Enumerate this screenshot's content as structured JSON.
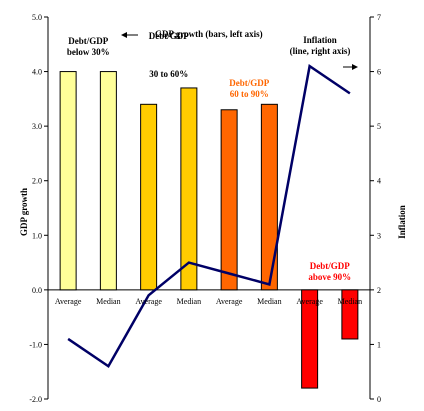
{
  "chart_data": {
    "type": "bar",
    "title": "",
    "bar_axis_note": "GDP growth (bars, left axis)",
    "line_axis_note": "Inflation (line, right axis)",
    "ylabel": "GDP growth",
    "y2label": "Inflation",
    "ylim": [
      -2.0,
      5.0
    ],
    "y2lim": [
      0,
      7
    ],
    "yticks": [
      "5.0",
      "4.0",
      "3.0",
      "2.0",
      "1.0",
      "0.0",
      "-1.0",
      "-2.0"
    ],
    "y2ticks": [
      "7",
      "6",
      "5",
      "4",
      "3",
      "2",
      "1",
      "0"
    ],
    "categories": [
      "Average",
      "Median",
      "Average",
      "Median",
      "Average",
      "Median",
      "Average",
      "Median"
    ],
    "groups": [
      {
        "label": "Debt/GDP below 30%",
        "label_lines": [
          "Debt/GDP",
          "below 30%"
        ],
        "color": "#ffff99",
        "label_color": "#000000"
      },
      {
        "label": "Debt/GDP 30 to 60%",
        "label_lines": [
          "Debt/GDP",
          "30 to 60%"
        ],
        "color": "#ffcc00",
        "label_color": "#000000"
      },
      {
        "label": "Debt/GDP 60 to 90%",
        "label_lines": [
          "Debt/GDP",
          "60 to 90%"
        ],
        "color": "#ff6600",
        "label_color": "#ff6600"
      },
      {
        "label": "Debt/GDP above 90%",
        "label_lines": [
          "Debt/GDP",
          "above 90%"
        ],
        "color": "#ff0000",
        "label_color": "#ff0000"
      }
    ],
    "series": [
      {
        "name": "GDP growth",
        "axis": "left",
        "kind": "bar",
        "values": [
          4.0,
          4.0,
          3.4,
          3.7,
          3.3,
          3.4,
          -1.8,
          -0.9
        ]
      },
      {
        "name": "Inflation",
        "axis": "right",
        "kind": "line",
        "color": "#000066",
        "values": [
          1.1,
          0.6,
          1.9,
          2.5,
          2.3,
          2.1,
          6.1,
          5.6
        ]
      }
    ],
    "grid": false,
    "arrows": {
      "bar_note": "left-arrow",
      "line_note": "right-arrow"
    }
  }
}
